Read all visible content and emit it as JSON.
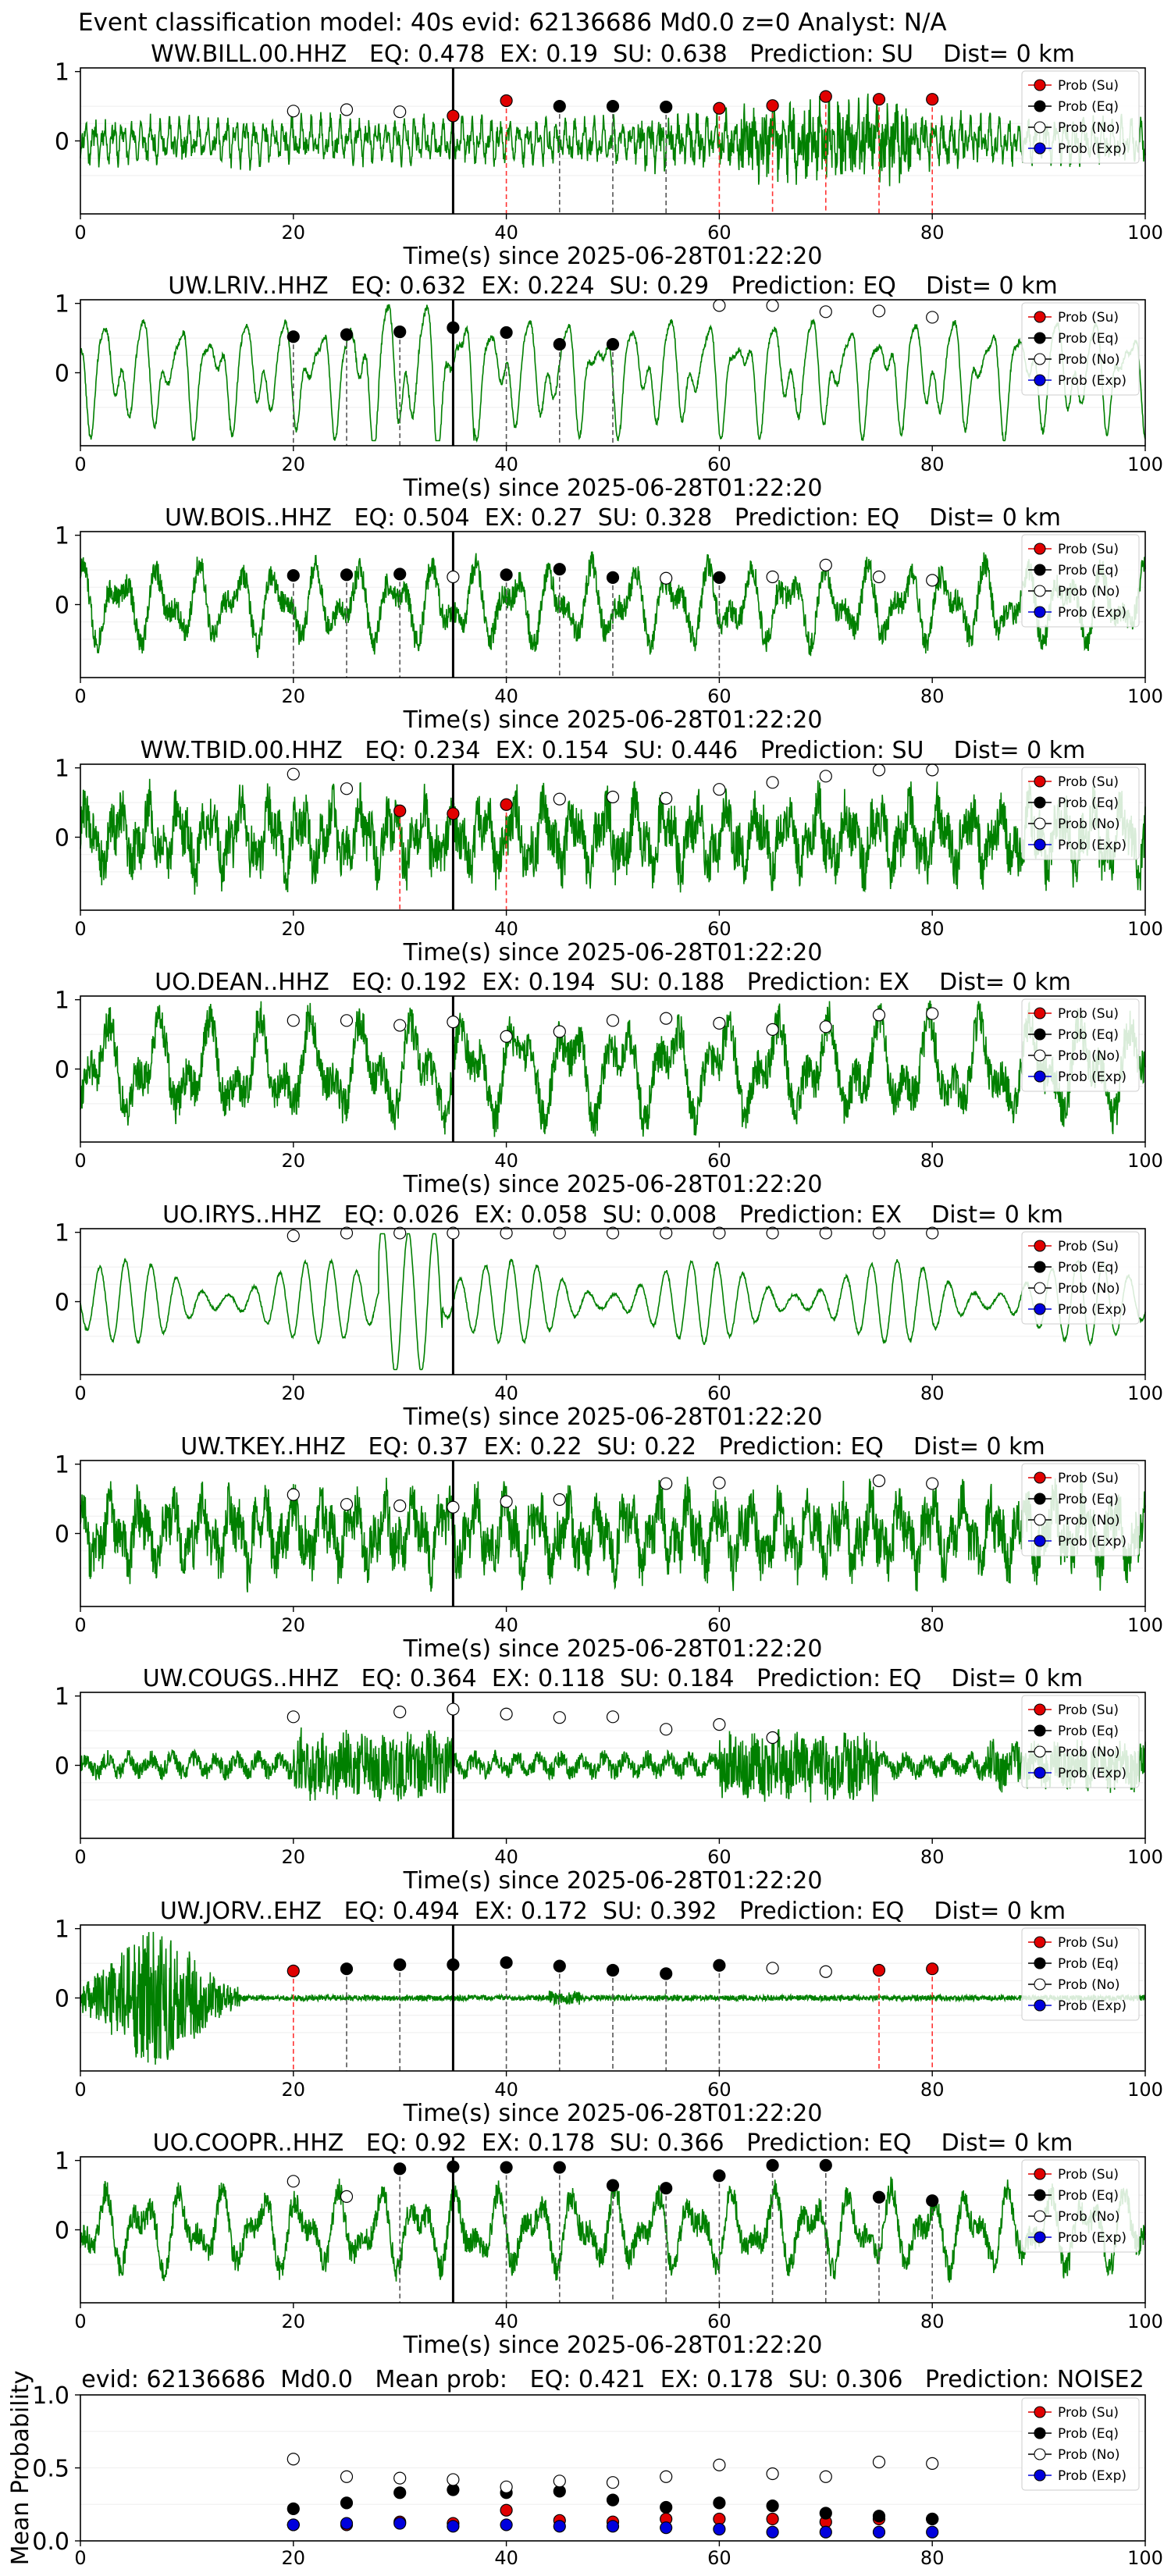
{
  "suptitle": "Event classification model: 40s evid: 62136686 Md0.0 z=0 Analyst: N/A",
  "legend_labels": [
    "Prob (Su)",
    "Prob (Eq)",
    "Prob (No)",
    "Prob (Exp)"
  ],
  "colors": {
    "su": "#e00000",
    "eq": "#000000",
    "no": "#ffffff",
    "exp": "#0000dd",
    "wave": "#008000",
    "su_line": "#ff3333",
    "eq_line": "#555555"
  },
  "xlabel": "Time(s) since 2025-06-28T01:22:20",
  "x_ticks": [
    0,
    20,
    40,
    60,
    80,
    100
  ],
  "window_starts": [
    20,
    25,
    30,
    35,
    40,
    45,
    50,
    55,
    60,
    65,
    70,
    75,
    80
  ],
  "pick_time": 35,
  "chart_data": [
    {
      "type": "line",
      "title": "WW.BILL.00.HHZ   EQ: 0.478  EX: 0.19  SU: 0.638   Prediction: SU    Dist= 0 km",
      "xlim": [
        0,
        100
      ],
      "ylim": [
        -1,
        1
      ],
      "y_ticks": [
        0,
        1
      ],
      "wave": {
        "seed": 11,
        "style": "bill"
      },
      "points": [
        {
          "t": 20,
          "c": "no",
          "p": 0.43
        },
        {
          "t": 25,
          "c": "no",
          "p": 0.45
        },
        {
          "t": 30,
          "c": "no",
          "p": 0.42
        },
        {
          "t": 35,
          "c": "su",
          "p": 0.36
        },
        {
          "t": 40,
          "c": "su",
          "p": 0.58
        },
        {
          "t": 45,
          "c": "eq",
          "p": 0.5
        },
        {
          "t": 50,
          "c": "eq",
          "p": 0.5
        },
        {
          "t": 55,
          "c": "eq",
          "p": 0.49
        },
        {
          "t": 60,
          "c": "su",
          "p": 0.47
        },
        {
          "t": 65,
          "c": "su",
          "p": 0.51
        },
        {
          "t": 70,
          "c": "su",
          "p": 0.64
        },
        {
          "t": 75,
          "c": "su",
          "p": 0.6
        },
        {
          "t": 80,
          "c": "su",
          "p": 0.6
        }
      ]
    },
    {
      "type": "line",
      "title": "UW.LRIV..HHZ   EQ: 0.632  EX: 0.224  SU: 0.29   Prediction: EQ    Dist= 0 km",
      "xlim": [
        0,
        100
      ],
      "ylim": [
        -1,
        1
      ],
      "y_ticks": [
        0,
        1
      ],
      "wave": {
        "seed": 22,
        "style": "smooth"
      },
      "points": [
        {
          "t": 20,
          "c": "eq",
          "p": 0.52
        },
        {
          "t": 25,
          "c": "eq",
          "p": 0.55
        },
        {
          "t": 30,
          "c": "eq",
          "p": 0.59
        },
        {
          "t": 35,
          "c": "eq",
          "p": 0.65
        },
        {
          "t": 40,
          "c": "eq",
          "p": 0.58
        },
        {
          "t": 45,
          "c": "eq",
          "p": 0.41
        },
        {
          "t": 50,
          "c": "eq",
          "p": 0.41
        },
        {
          "t": 60,
          "c": "no",
          "p": 0.97
        },
        {
          "t": 65,
          "c": "no",
          "p": 0.97
        },
        {
          "t": 70,
          "c": "no",
          "p": 0.88
        },
        {
          "t": 75,
          "c": "no",
          "p": 0.89
        },
        {
          "t": 80,
          "c": "no",
          "p": 0.8
        }
      ]
    },
    {
      "type": "line",
      "title": "UW.BOIS..HHZ   EQ: 0.504  EX: 0.27  SU: 0.328   Prediction: EQ    Dist= 0 km",
      "xlim": [
        0,
        100
      ],
      "ylim": [
        -1,
        1
      ],
      "y_ticks": [
        0,
        1
      ],
      "wave": {
        "seed": 33,
        "style": "medium"
      },
      "points": [
        {
          "t": 20,
          "c": "eq",
          "p": 0.42
        },
        {
          "t": 25,
          "c": "eq",
          "p": 0.43
        },
        {
          "t": 30,
          "c": "eq",
          "p": 0.44
        },
        {
          "t": 35,
          "c": "no",
          "p": 0.4
        },
        {
          "t": 40,
          "c": "eq",
          "p": 0.43
        },
        {
          "t": 45,
          "c": "eq",
          "p": 0.51
        },
        {
          "t": 50,
          "c": "eq",
          "p": 0.39
        },
        {
          "t": 55,
          "c": "no",
          "p": 0.38
        },
        {
          "t": 60,
          "c": "eq",
          "p": 0.39
        },
        {
          "t": 65,
          "c": "no",
          "p": 0.4
        },
        {
          "t": 70,
          "c": "no",
          "p": 0.57
        },
        {
          "t": 75,
          "c": "no",
          "p": 0.4
        },
        {
          "t": 80,
          "c": "no",
          "p": 0.35
        }
      ]
    },
    {
      "type": "line",
      "title": "WW.TBID.00.HHZ   EQ: 0.234  EX: 0.154  SU: 0.446   Prediction: SU    Dist= 0 km",
      "xlim": [
        0,
        100
      ],
      "ylim": [
        -1,
        1
      ],
      "y_ticks": [
        0,
        1
      ],
      "wave": {
        "seed": 44,
        "style": "dense"
      },
      "points": [
        {
          "t": 20,
          "c": "no",
          "p": 0.91
        },
        {
          "t": 25,
          "c": "no",
          "p": 0.7
        },
        {
          "t": 30,
          "c": "su",
          "p": 0.38
        },
        {
          "t": 35,
          "c": "su",
          "p": 0.34
        },
        {
          "t": 40,
          "c": "su",
          "p": 0.47
        },
        {
          "t": 45,
          "c": "no",
          "p": 0.55
        },
        {
          "t": 50,
          "c": "no",
          "p": 0.58
        },
        {
          "t": 55,
          "c": "no",
          "p": 0.56
        },
        {
          "t": 60,
          "c": "no",
          "p": 0.69
        },
        {
          "t": 65,
          "c": "no",
          "p": 0.79
        },
        {
          "t": 70,
          "c": "no",
          "p": 0.88
        },
        {
          "t": 75,
          "c": "no",
          "p": 0.97
        },
        {
          "t": 80,
          "c": "no",
          "p": 0.97
        }
      ]
    },
    {
      "type": "line",
      "title": "UO.DEAN..HHZ   EQ: 0.192  EX: 0.194  SU: 0.188   Prediction: EX    Dist= 0 km",
      "xlim": [
        0,
        100
      ],
      "ylim": [
        -1,
        1
      ],
      "y_ticks": [
        0,
        1
      ],
      "wave": {
        "seed": 55,
        "style": "thick"
      },
      "points": [
        {
          "t": 20,
          "c": "no",
          "p": 0.7
        },
        {
          "t": 25,
          "c": "no",
          "p": 0.7
        },
        {
          "t": 30,
          "c": "no",
          "p": 0.63
        },
        {
          "t": 35,
          "c": "no",
          "p": 0.68
        },
        {
          "t": 40,
          "c": "no",
          "p": 0.47
        },
        {
          "t": 45,
          "c": "no",
          "p": 0.54
        },
        {
          "t": 50,
          "c": "no",
          "p": 0.7
        },
        {
          "t": 55,
          "c": "no",
          "p": 0.73
        },
        {
          "t": 60,
          "c": "no",
          "p": 0.66
        },
        {
          "t": 65,
          "c": "no",
          "p": 0.57
        },
        {
          "t": 70,
          "c": "no",
          "p": 0.61
        },
        {
          "t": 75,
          "c": "no",
          "p": 0.78
        },
        {
          "t": 80,
          "c": "no",
          "p": 0.8
        }
      ]
    },
    {
      "type": "line",
      "title": "UO.IRYS..HHZ   EQ: 0.026  EX: 0.058  SU: 0.008   Prediction: EX    Dist= 0 km",
      "xlim": [
        0,
        100
      ],
      "ylim": [
        -1,
        1
      ],
      "y_ticks": [
        0,
        1
      ],
      "wave": {
        "seed": 66,
        "style": "irys"
      },
      "points": [
        {
          "t": 20,
          "c": "no",
          "p": 0.95
        },
        {
          "t": 25,
          "c": "no",
          "p": 0.99
        },
        {
          "t": 30,
          "c": "no",
          "p": 0.99
        },
        {
          "t": 35,
          "c": "no",
          "p": 0.99
        },
        {
          "t": 40,
          "c": "no",
          "p": 0.99
        },
        {
          "t": 45,
          "c": "no",
          "p": 0.99
        },
        {
          "t": 50,
          "c": "no",
          "p": 0.99
        },
        {
          "t": 55,
          "c": "no",
          "p": 0.99
        },
        {
          "t": 60,
          "c": "no",
          "p": 0.99
        },
        {
          "t": 65,
          "c": "no",
          "p": 0.99
        },
        {
          "t": 70,
          "c": "no",
          "p": 0.99
        },
        {
          "t": 75,
          "c": "no",
          "p": 0.99
        },
        {
          "t": 80,
          "c": "no",
          "p": 0.99
        }
      ]
    },
    {
      "type": "line",
      "title": "UW.TKEY..HHZ   EQ: 0.37  EX: 0.22  SU: 0.22   Prediction: EQ    Dist= 0 km",
      "xlim": [
        0,
        100
      ],
      "ylim": [
        -1,
        1
      ],
      "y_ticks": [
        0,
        1
      ],
      "wave": {
        "seed": 77,
        "style": "dense"
      },
      "points": [
        {
          "t": 20,
          "c": "no",
          "p": 0.56
        },
        {
          "t": 25,
          "c": "no",
          "p": 0.42
        },
        {
          "t": 30,
          "c": "no",
          "p": 0.4
        },
        {
          "t": 35,
          "c": "no",
          "p": 0.38
        },
        {
          "t": 40,
          "c": "no",
          "p": 0.46
        },
        {
          "t": 45,
          "c": "no",
          "p": 0.49
        },
        {
          "t": 55,
          "c": "no",
          "p": 0.72
        },
        {
          "t": 60,
          "c": "no",
          "p": 0.73
        },
        {
          "t": 75,
          "c": "no",
          "p": 0.76
        },
        {
          "t": 80,
          "c": "no",
          "p": 0.72
        }
      ]
    },
    {
      "type": "line",
      "title": "UW.COUGS..HHZ   EQ: 0.364  EX: 0.118  SU: 0.184   Prediction: EQ    Dist= 0 km",
      "xlim": [
        0,
        100
      ],
      "ylim": [
        -1,
        1
      ],
      "y_ticks": [
        0,
        1
      ],
      "wave": {
        "seed": 88,
        "style": "cougs"
      },
      "points": [
        {
          "t": 20,
          "c": "no",
          "p": 0.7
        },
        {
          "t": 30,
          "c": "no",
          "p": 0.77
        },
        {
          "t": 35,
          "c": "no",
          "p": 0.81
        },
        {
          "t": 40,
          "c": "no",
          "p": 0.74
        },
        {
          "t": 45,
          "c": "no",
          "p": 0.69
        },
        {
          "t": 50,
          "c": "no",
          "p": 0.7
        },
        {
          "t": 55,
          "c": "no",
          "p": 0.52
        },
        {
          "t": 60,
          "c": "no",
          "p": 0.59
        },
        {
          "t": 65,
          "c": "no",
          "p": 0.4
        }
      ]
    },
    {
      "type": "line",
      "title": "UW.JORV..EHZ   EQ: 0.494  EX: 0.172  SU: 0.392   Prediction: EQ    Dist= 0 km",
      "xlim": [
        0,
        100
      ],
      "ylim": [
        -1,
        1
      ],
      "y_ticks": [
        0,
        1
      ],
      "wave": {
        "seed": 99,
        "style": "jorv"
      },
      "points": [
        {
          "t": 20,
          "c": "su",
          "p": 0.39
        },
        {
          "t": 25,
          "c": "eq",
          "p": 0.42
        },
        {
          "t": 30,
          "c": "eq",
          "p": 0.48
        },
        {
          "t": 35,
          "c": "eq",
          "p": 0.48
        },
        {
          "t": 40,
          "c": "eq",
          "p": 0.51
        },
        {
          "t": 45,
          "c": "eq",
          "p": 0.46
        },
        {
          "t": 50,
          "c": "eq",
          "p": 0.4
        },
        {
          "t": 55,
          "c": "eq",
          "p": 0.35
        },
        {
          "t": 60,
          "c": "eq",
          "p": 0.47
        },
        {
          "t": 65,
          "c": "no",
          "p": 0.43
        },
        {
          "t": 70,
          "c": "no",
          "p": 0.38
        },
        {
          "t": 75,
          "c": "su",
          "p": 0.4
        },
        {
          "t": 80,
          "c": "su",
          "p": 0.42
        }
      ]
    },
    {
      "type": "line",
      "title": "UO.COOPR..HHZ   EQ: 0.92  EX: 0.178  SU: 0.366   Prediction: EQ    Dist= 0 km",
      "xlim": [
        0,
        100
      ],
      "ylim": [
        -1,
        1
      ],
      "y_ticks": [
        0,
        1
      ],
      "wave": {
        "seed": 111,
        "style": "medium"
      },
      "points": [
        {
          "t": 20,
          "c": "no",
          "p": 0.7
        },
        {
          "t": 25,
          "c": "no",
          "p": 0.48
        },
        {
          "t": 30,
          "c": "eq",
          "p": 0.88
        },
        {
          "t": 35,
          "c": "eq",
          "p": 0.91
        },
        {
          "t": 40,
          "c": "eq",
          "p": 0.9
        },
        {
          "t": 45,
          "c": "eq",
          "p": 0.9
        },
        {
          "t": 50,
          "c": "eq",
          "p": 0.64
        },
        {
          "t": 55,
          "c": "eq",
          "p": 0.6
        },
        {
          "t": 60,
          "c": "eq",
          "p": 0.78
        },
        {
          "t": 65,
          "c": "eq",
          "p": 0.93
        },
        {
          "t": 70,
          "c": "eq",
          "p": 0.93
        },
        {
          "t": 75,
          "c": "eq",
          "p": 0.47
        },
        {
          "t": 80,
          "c": "eq",
          "p": 0.42
        }
      ]
    },
    {
      "type": "scatter",
      "title": "evid: 62136686  Md0.0   Mean prob:   EQ: 0.421  EX: 0.178  SU: 0.306   Prediction: NOISE2",
      "ylabel": "Mean Probability",
      "xlim": [
        0,
        100
      ],
      "ylim": [
        0,
        1
      ],
      "y_ticks": [
        "0.0",
        "0.5",
        "1.0"
      ],
      "x": [
        20,
        25,
        30,
        35,
        40,
        45,
        50,
        55,
        60,
        65,
        70,
        75,
        80
      ],
      "series": [
        {
          "name": "Prob (Su)",
          "key": "su",
          "values": [
            0.11,
            0.11,
            0.13,
            0.12,
            0.21,
            0.14,
            0.13,
            0.15,
            0.15,
            0.15,
            0.13,
            0.15,
            0.15
          ]
        },
        {
          "name": "Prob (Eq)",
          "key": "eq",
          "values": [
            0.22,
            0.26,
            0.33,
            0.35,
            0.33,
            0.34,
            0.28,
            0.23,
            0.26,
            0.24,
            0.19,
            0.17,
            0.15
          ]
        },
        {
          "name": "Prob (No)",
          "key": "no",
          "values": [
            0.56,
            0.44,
            0.43,
            0.42,
            0.37,
            0.41,
            0.4,
            0.44,
            0.52,
            0.46,
            0.44,
            0.54,
            0.53
          ]
        },
        {
          "name": "Prob (Exp)",
          "key": "exp",
          "values": [
            0.11,
            0.12,
            0.12,
            0.1,
            0.11,
            0.1,
            0.1,
            0.09,
            0.08,
            0.06,
            0.06,
            0.06,
            0.06
          ]
        }
      ]
    }
  ]
}
